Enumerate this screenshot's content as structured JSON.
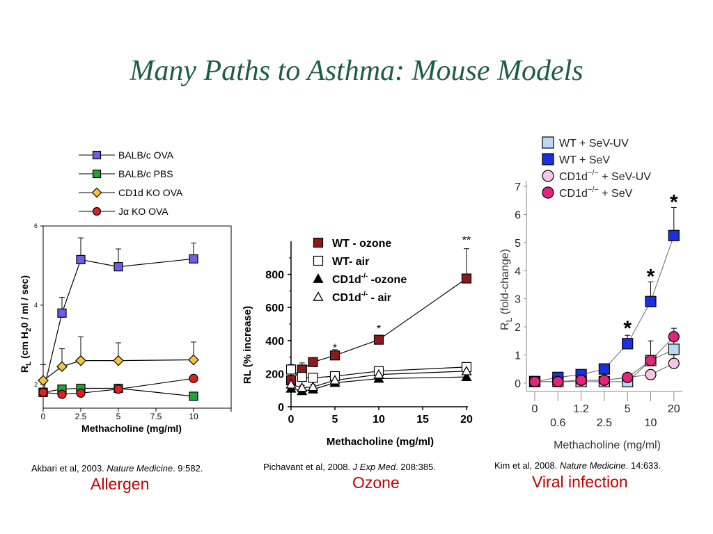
{
  "slide": {
    "title": "Many Paths to Asthma:  Mouse Models",
    "panels": [
      {
        "cite_authors": "Akbari et al, 2003. ",
        "cite_journal": "Nature Medicine",
        "cite_ref": ". 9:582.",
        "caption": "Allergen"
      },
      {
        "cite_authors": "Pichavant et al, 2008. ",
        "cite_journal": "J Exp Med",
        "cite_ref": ". 208:385.",
        "caption": "Ozone"
      },
      {
        "cite_authors": "Kim et al, 2008. ",
        "cite_journal": "Nature Medicine",
        "cite_ref": ". 14:633.",
        "caption": "Viral infection"
      }
    ]
  },
  "chart_data": [
    {
      "type": "line",
      "ylabel_main": "R",
      "ylabel_sub": "L",
      "ylabel_rest": " (cm H",
      "ylabel_sub2": "2",
      "ylabel_end": "0 / ml / sec)",
      "xlabel": "Methacholine (mg/ml)",
      "xlim": [
        0,
        12.5
      ],
      "ylim": [
        1.4,
        6
      ],
      "xticks": [
        0,
        2.5,
        5,
        7.5,
        10
      ],
      "xtick_labels": [
        "0",
        "2.5",
        "5",
        "7.5",
        "10"
      ],
      "yticks": [
        2,
        4,
        6
      ],
      "ytick_labels": [
        "2",
        "4",
        "6"
      ],
      "legend_position": "top",
      "series": [
        {
          "name": "BALB/c  OVA",
          "color": "#6a5fe6",
          "marker": "square",
          "x": [
            0,
            1.25,
            2.5,
            5,
            10
          ],
          "y": [
            1.8,
            3.8,
            5.15,
            4.97,
            5.17
          ],
          "err": [
            0,
            0.4,
            0.55,
            0.45,
            0.4
          ]
        },
        {
          "name": "BALB/c  PBS",
          "color": "#22a33a",
          "marker": "square",
          "x": [
            0,
            1.25,
            2.5,
            5,
            10
          ],
          "y": [
            1.8,
            1.88,
            1.9,
            1.9,
            1.7
          ],
          "err": [
            0,
            0.08,
            0.1,
            0.08,
            0
          ]
        },
        {
          "name": "CD1d KO  OVA",
          "color": "#f4c542",
          "marker": "diamond",
          "x": [
            0,
            1.25,
            2.5,
            5,
            10
          ],
          "y": [
            2.1,
            2.45,
            2.6,
            2.6,
            2.62
          ],
          "err": [
            0.4,
            0.45,
            0.6,
            0.45,
            0.45
          ]
        },
        {
          "name": "KO  OVA",
          "name_prefix_symbol": "Jα",
          "color": "#e02020",
          "marker": "circle",
          "x": [
            0,
            1.25,
            2.5,
            5,
            10
          ],
          "y": [
            1.8,
            1.75,
            1.78,
            1.88,
            2.15
          ],
          "err": [
            0,
            0,
            0,
            0,
            0
          ]
        }
      ]
    },
    {
      "type": "line",
      "ylabel": "RL (% increase)",
      "xlabel": "Methacholine (mg/ml)",
      "xlim": [
        0,
        20
      ],
      "ylim": [
        0,
        1000
      ],
      "xticks": [
        0,
        5,
        10,
        15,
        20
      ],
      "xtick_labels": [
        "0",
        "5",
        "10",
        "15",
        "20"
      ],
      "yticks": [
        0,
        200,
        400,
        600,
        800
      ],
      "ytick_labels": [
        "0",
        "200",
        "400",
        "600",
        "800"
      ],
      "legend_position": "top-left",
      "series": [
        {
          "name": "WT -  ozone",
          "color": "#8b1a1a",
          "marker": "square-filled",
          "x": [
            0,
            1.25,
            2.5,
            5,
            10,
            20
          ],
          "y": [
            160,
            225,
            270,
            310,
            405,
            775
          ],
          "err": [
            30,
            40,
            25,
            35,
            25,
            180
          ]
        },
        {
          "name": "WT- air",
          "color": "#000000",
          "marker": "square-open",
          "x": [
            0,
            1.25,
            2.5,
            5,
            10,
            20
          ],
          "y": [
            225,
            180,
            175,
            185,
            215,
            240
          ],
          "err": [
            30,
            30,
            20,
            20,
            20,
            20
          ]
        },
        {
          "name": "CD1d -ozone",
          "sup": "-/-",
          "color": "#000000",
          "marker": "triangle-filled",
          "x": [
            0,
            1.25,
            2.5,
            5,
            10,
            20
          ],
          "y": [
            110,
            95,
            105,
            145,
            170,
            180
          ],
          "err": [
            20,
            20,
            15,
            15,
            15,
            15
          ]
        },
        {
          "name": "CD1d -  air",
          "sup": "-/-",
          "color": "#000000",
          "marker": "triangle-open",
          "x": [
            0,
            1.25,
            2.5,
            5,
            10,
            20
          ],
          "y": [
            135,
            115,
            120,
            160,
            195,
            215
          ],
          "err": [
            15,
            15,
            15,
            15,
            15,
            15
          ]
        }
      ],
      "annotations": [
        {
          "text": "*",
          "x": 5,
          "y": 335
        },
        {
          "text": "*",
          "x": 10,
          "y": 450
        },
        {
          "text": "**",
          "x": 20,
          "y": 985
        }
      ]
    },
    {
      "type": "line",
      "ylabel_main": "R",
      "ylabel_sub": "L",
      "ylabel_rest": " (fold-change)",
      "xlabel": "Methacholine (mg/ml)",
      "x_scale": "categorical",
      "x_categories": [
        "0",
        "0.6",
        "1.2",
        "2.5",
        "5",
        "10",
        "20"
      ],
      "xtick_labels_upper": [
        "0",
        "1.2",
        "5",
        "20"
      ],
      "xtick_labels_lower": [
        "0.6",
        "2.5",
        "10"
      ],
      "ylim": [
        -0.3,
        7.2
      ],
      "yticks": [
        0,
        1,
        2,
        3,
        4,
        5,
        6,
        7
      ],
      "ytick_labels": [
        "0",
        "1",
        "2",
        "3",
        "4",
        "5",
        "6",
        "7"
      ],
      "legend_position": "top",
      "series": [
        {
          "name": "WT + SeV-UV",
          "color": "#bcd8f2",
          "marker": "square",
          "y": [
            0.05,
            0.05,
            0.05,
            0.05,
            0.05,
            0.8,
            1.2
          ],
          "err": [
            0,
            0,
            0,
            0,
            0,
            0.15,
            0.3
          ]
        },
        {
          "name": "WT + SeV",
          "color": "#1a2fe0",
          "marker": "square",
          "y": [
            0.05,
            0.2,
            0.3,
            0.5,
            1.4,
            2.9,
            5.25
          ],
          "err": [
            0,
            0,
            0,
            0,
            0.3,
            0.7,
            1.0
          ]
        },
        {
          "name": "CD1d",
          "sup": "−/−",
          "suffix": " + SeV-UV",
          "color": "#f4c8e4",
          "marker": "circle",
          "y": [
            0.05,
            0.05,
            0.1,
            0.1,
            0.2,
            0.3,
            0.7
          ],
          "err": [
            0,
            0,
            0,
            0,
            0,
            0,
            0.3
          ]
        },
        {
          "name": "CD1d",
          "sup": "−/−",
          "suffix": " + SeV",
          "color": "#e2247a",
          "marker": "circle",
          "y": [
            0.05,
            0.05,
            0.1,
            0.1,
            0.2,
            0.8,
            1.65
          ],
          "err": [
            0,
            0,
            0,
            0,
            0,
            0.7,
            0.3
          ]
        }
      ],
      "annotations": [
        {
          "text": "*",
          "x_index": 4,
          "y": 2.05
        },
        {
          "text": "*",
          "x_index": 5,
          "y": 3.9
        },
        {
          "text": "*",
          "x_index": 6,
          "y": 6.55
        }
      ]
    }
  ]
}
